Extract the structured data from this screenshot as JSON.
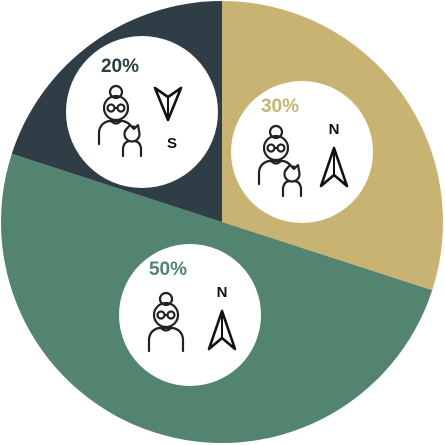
{
  "chart_data": {
    "type": "pie",
    "start_angle_deg": 0,
    "direction": "clockwise",
    "slices": [
      {
        "label": "30%",
        "value": 30,
        "color": "#C9B373",
        "label_color": "#C9B373",
        "icon": "grandparent-with-child-icon",
        "direction_letter": "N",
        "arrow": "north-arrow-icon"
      },
      {
        "label": "50%",
        "value": 50,
        "color": "#528470",
        "label_color": "#528470",
        "icon": "elderly-person-icon",
        "direction_letter": "N",
        "arrow": "north-arrow-icon"
      },
      {
        "label": "20%",
        "value": 20,
        "color": "#2F3E46",
        "label_color": "#2F3E46",
        "icon": "grandparent-with-child-icon",
        "direction_letter": "S",
        "arrow": "south-arrow-icon"
      }
    ]
  }
}
